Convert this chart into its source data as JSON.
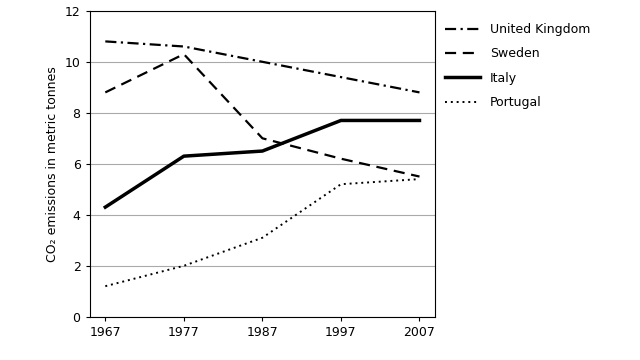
{
  "years": [
    1967,
    1977,
    1987,
    1997,
    2007
  ],
  "united_kingdom": [
    10.8,
    10.6,
    10.0,
    9.4,
    8.8
  ],
  "sweden": [
    8.8,
    10.3,
    7.0,
    6.2,
    5.5
  ],
  "italy": [
    4.3,
    6.3,
    6.5,
    7.7,
    7.7
  ],
  "portugal": [
    1.2,
    2.0,
    3.1,
    5.2,
    5.4
  ],
  "ylabel": "CO₂ emissions in metric tonnes",
  "ylim": [
    0,
    12
  ],
  "yticks": [
    0,
    2,
    4,
    6,
    8,
    10,
    12
  ],
  "xticks": [
    1967,
    1977,
    1987,
    1997,
    2007
  ],
  "legend_labels": [
    "United Kingdom",
    "Sweden",
    "Italy",
    "Portugal"
  ],
  "line_color": "#000000",
  "background_color": "#ffffff",
  "grid_color": "#aaaaaa"
}
